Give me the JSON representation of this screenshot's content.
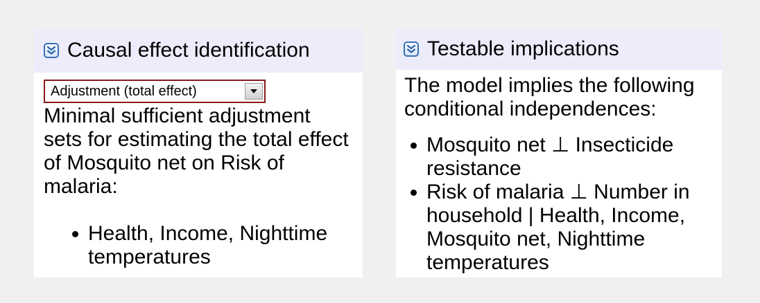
{
  "left_panel": {
    "title": "Causal effect identification",
    "icon": "collapse-double-chevron-icon",
    "select": {
      "selected": "Adjustment (total effect)"
    },
    "description": "Minimal sufficient adjustment sets for estimating the total effect of Mosquito net on Risk of malaria:",
    "items": [
      "Health, Income, Nighttime temperatures"
    ]
  },
  "right_panel": {
    "title": "Testable implications",
    "icon": "collapse-double-chevron-icon",
    "description": "The model implies the following conditional independences:",
    "items": [
      "Mosquito net ⊥ Insecticide resistance",
      "Risk of malaria ⊥ Number in household | Health, Income, Mosquito net, Nighttime temperatures"
    ]
  },
  "colors": {
    "page_background": "#f0f0f0",
    "header_background": "#ececfb",
    "panel_background": "#ffffff",
    "select_border": "#8a1a1a",
    "icon_border": "#3a6fb4"
  }
}
